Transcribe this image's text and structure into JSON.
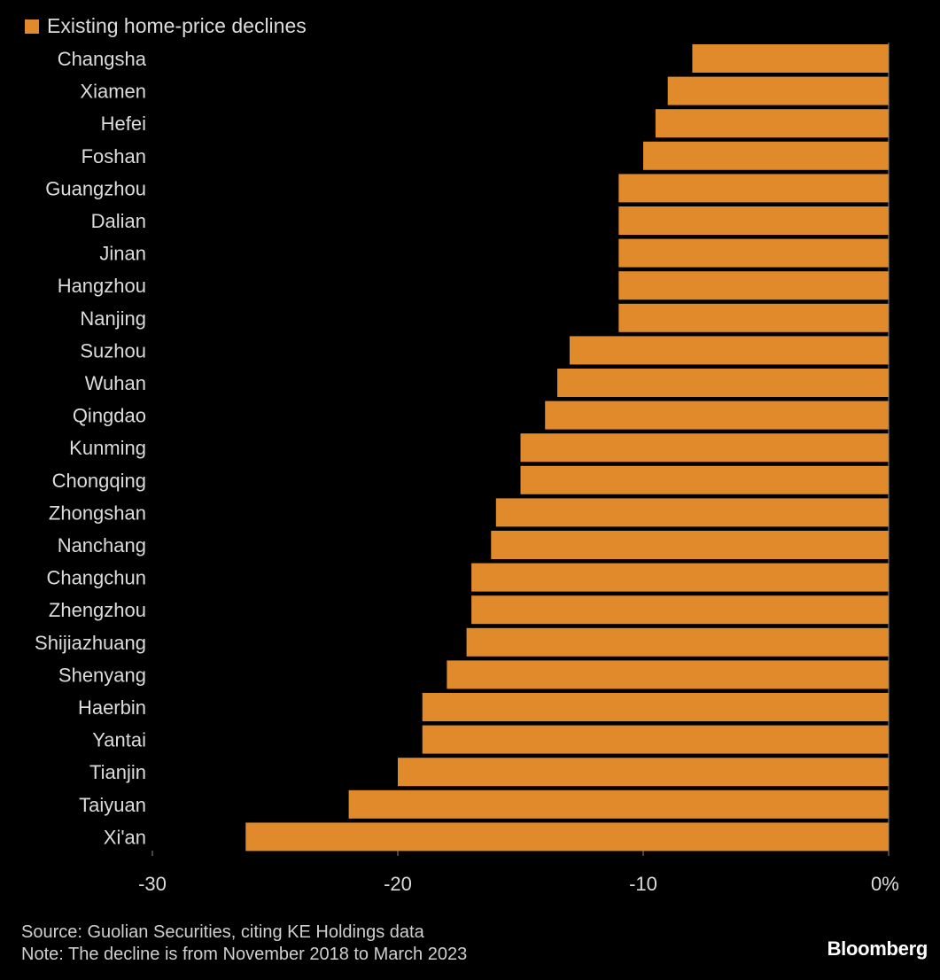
{
  "colors": {
    "background": "#000000",
    "bar": "#e08a2c",
    "text": "#dcdcdc",
    "axis": "#8a8a8a"
  },
  "legend": {
    "label": "Existing home-price declines",
    "swatch_color": "#e08a2c"
  },
  "footer": {
    "source": "Source: Guolian Securities, citing KE Holdings data",
    "note": "Note: The decline is from November 2018 to March 2023"
  },
  "brand": "Bloomberg",
  "chart_data": {
    "type": "bar",
    "orientation": "horizontal",
    "title": "",
    "xlabel": "",
    "ylabel": "",
    "xlim": [
      -30,
      0
    ],
    "grid": false,
    "legend_position": "top-left",
    "series": [
      {
        "name": "Existing home-price declines",
        "color": "#e08a2c"
      }
    ],
    "categories": [
      "Changsha",
      "Xiamen",
      "Hefei",
      "Foshan",
      "Guangzhou",
      "Dalian",
      "Jinan",
      "Hangzhou",
      "Nanjing",
      "Suzhou",
      "Wuhan",
      "Qingdao",
      "Kunming",
      "Chongqing",
      "Zhongshan",
      "Nanchang",
      "Changchun",
      "Zhengzhou",
      "Shijiazhuang",
      "Shenyang",
      "Haerbin",
      "Yantai",
      "Tianjin",
      "Taiyuan",
      "Xi'an"
    ],
    "values": [
      -8,
      -9,
      -9.5,
      -10,
      -11,
      -11,
      -11,
      -11,
      -11,
      -13,
      -13.5,
      -14,
      -15,
      -15,
      -16,
      -16.2,
      -17,
      -17,
      -17.2,
      -18,
      -19,
      -19,
      -20,
      -22,
      -26.2
    ],
    "x_ticks": [
      {
        "value": -30,
        "label": "-30"
      },
      {
        "value": -20,
        "label": "-20"
      },
      {
        "value": -10,
        "label": "-10"
      },
      {
        "value": 0,
        "label": "0%"
      }
    ]
  }
}
